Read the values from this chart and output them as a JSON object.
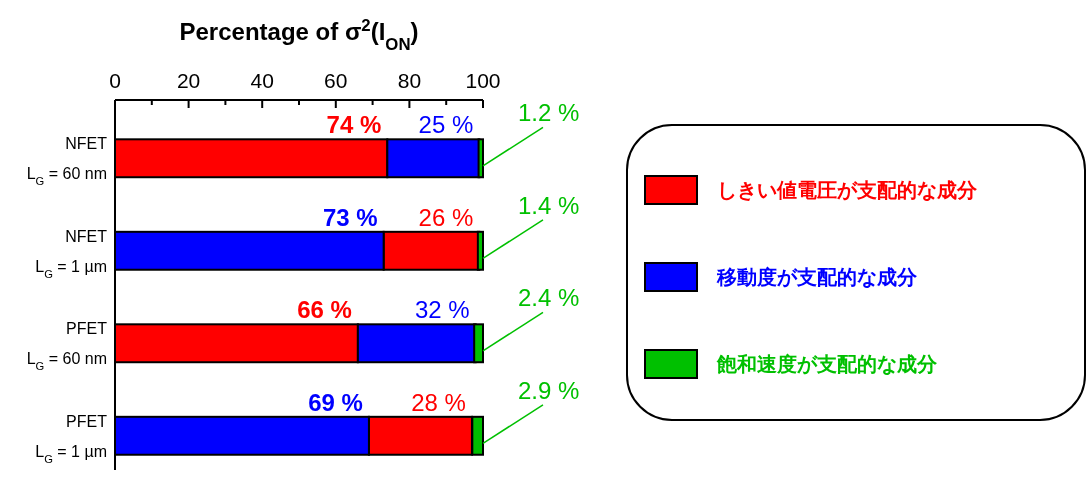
{
  "chart_data": {
    "type": "bar",
    "orientation": "horizontal",
    "title": "Percentage of σ$^{2}$(I$_{ON}$)",
    "categories": [
      "NFET\nL$_{G}$ = 60 nm",
      "NFET\nL$_{G}$ = 1 µm",
      "PFET\nL$_{G}$ = 60 nm",
      "PFET\nL$_{G}$ = 1 µm"
    ],
    "xlim": [
      0,
      100
    ],
    "xticks": [
      0,
      {
        "value": 10,
        "label": null
      },
      20,
      {
        "value": 30,
        "label": null
      },
      40,
      {
        "value": 50,
        "label": null
      },
      60,
      {
        "value": 70,
        "label": null
      },
      80,
      {
        "value": 90,
        "label": null
      },
      100
    ],
    "legend": "right",
    "series": [
      {
        "name": "しきい値電圧が支配的な成分",
        "color": "#ff0000",
        "values": [
          74,
          26,
          66,
          28
        ],
        "base": [
          0,
          73,
          0,
          69
        ],
        "value_labels": [
          "74 %",
          "26 %",
          "66 %",
          "28 %"
        ]
      },
      {
        "name": "移動度が支配的な成分",
        "color": "#0000ff",
        "values": [
          25,
          73,
          32,
          69
        ],
        "base": [
          74,
          0,
          66,
          0
        ],
        "value_labels": [
          "25 %",
          "73 %",
          "32 %",
          "69 %"
        ]
      },
      {
        "name": "飽和速度が支配的な成分",
        "color": "#00c000",
        "values": [
          1.2,
          1.4,
          2.4,
          2.9
        ],
        "base": [
          98.8,
          98.6,
          97.6,
          97.1
        ],
        "value_labels": [
          "1.2 %",
          "1.4 %",
          "2.4 %",
          "2.9 %"
        ]
      }
    ]
  }
}
